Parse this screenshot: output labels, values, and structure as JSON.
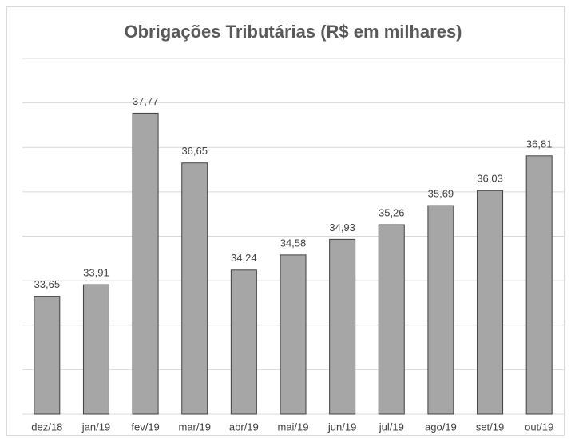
{
  "chart_data": {
    "type": "bar",
    "title": "Obrigações Tributárias (R$ em milhares)",
    "categories": [
      "dez/18",
      "jan/19",
      "fev/19",
      "mar/19",
      "abr/19",
      "mai/19",
      "jun/19",
      "jul/19",
      "ago/19",
      "set/19",
      "out/19"
    ],
    "values": [
      33.65,
      33.91,
      37.77,
      36.65,
      34.24,
      34.58,
      34.93,
      35.26,
      35.69,
      36.03,
      36.81
    ],
    "value_labels": [
      "33,65",
      "33,91",
      "37,77",
      "36,65",
      "34,24",
      "34,58",
      "34,93",
      "35,26",
      "35,69",
      "36,03",
      "36,81"
    ],
    "color": "#a6a6a6",
    "ylim": [
      31,
      39
    ],
    "yticks": [
      31,
      32,
      33,
      34,
      35,
      36,
      37,
      38,
      39
    ],
    "grid": true,
    "ytick_labels": false
  }
}
